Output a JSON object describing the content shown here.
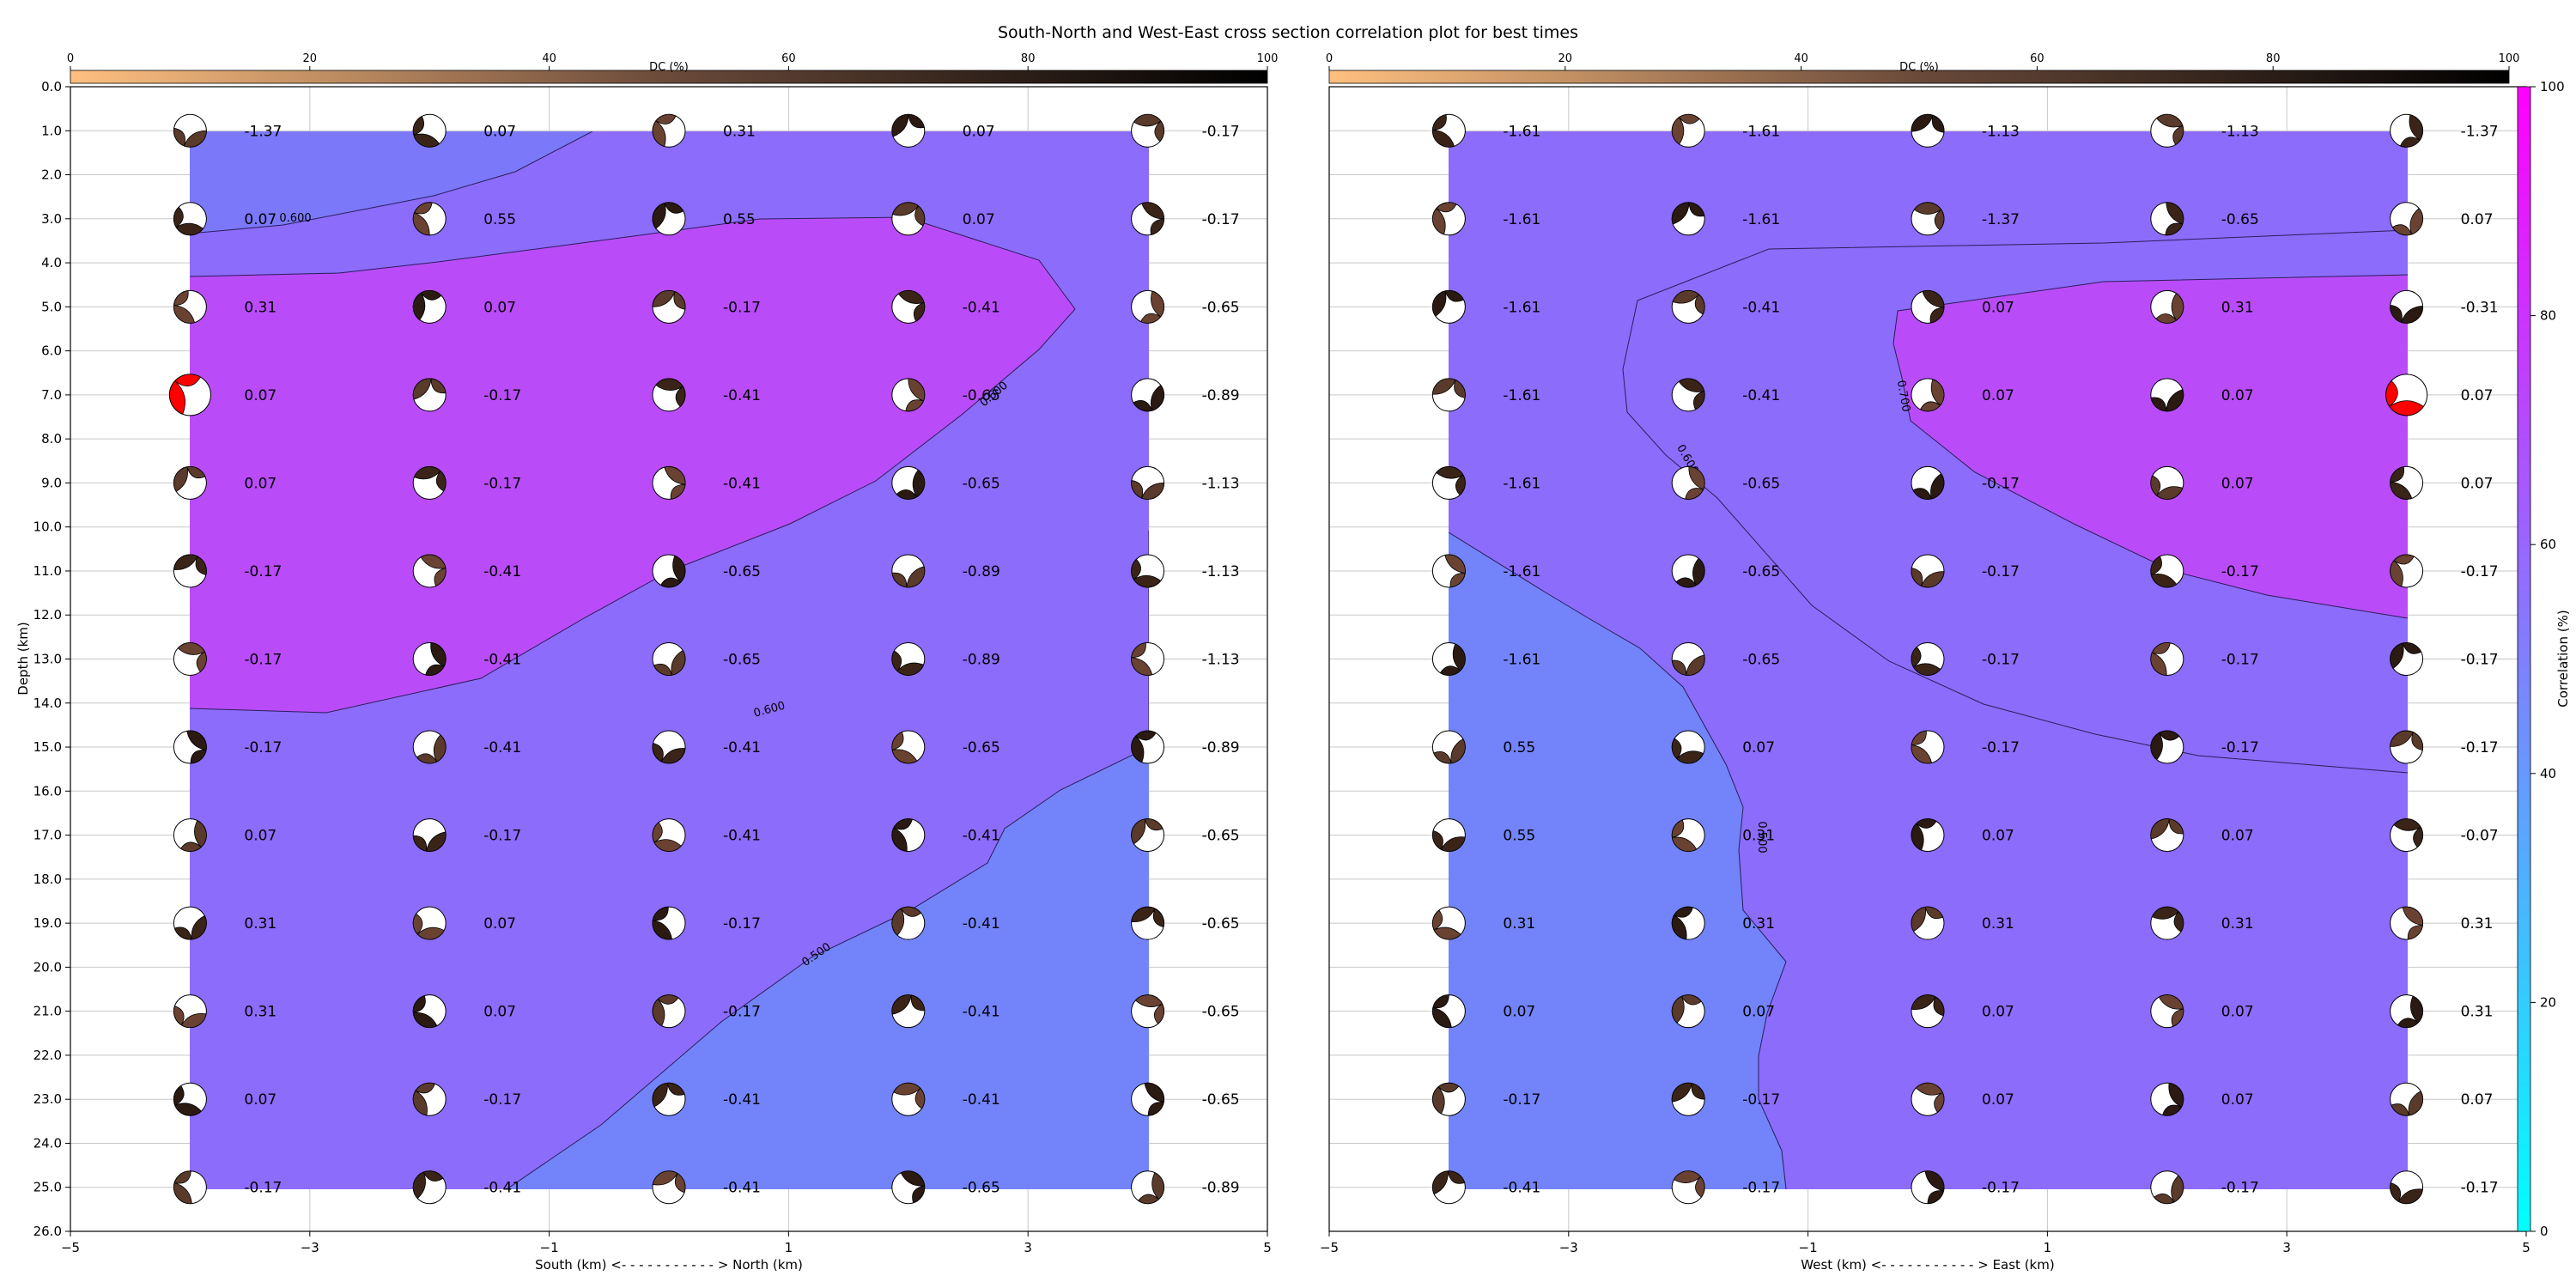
{
  "title": "South-North and West-East cross section correlation plot for best times",
  "dc_label": "DC (%)",
  "dc_ticks": [
    "0",
    "20",
    "40",
    "60",
    "80",
    "100"
  ],
  "colorbar": {
    "label": "Correlation (%)",
    "ticks": [
      "0",
      "20",
      "40",
      "60",
      "80",
      "100"
    ]
  },
  "colors": {
    "dc_start": "#ffc080",
    "dc_mid": "#6a4a3a",
    "dc_end": "#000000",
    "corr_low": "#00ffff",
    "corr_high": "#ff00ff",
    "best": "#ff0000"
  },
  "ylabel": "Depth (km)",
  "depth_ticks": [
    "0.0",
    "1.0",
    "2.0",
    "3.0",
    "4.0",
    "5.0",
    "6.0",
    "7.0",
    "8.0",
    "9.0",
    "10.0",
    "11.0",
    "12.0",
    "13.0",
    "14.0",
    "15.0",
    "16.0",
    "17.0",
    "18.0",
    "19.0",
    "20.0",
    "21.0",
    "22.0",
    "23.0",
    "24.0",
    "25.0",
    "26.0"
  ],
  "chart_data": [
    {
      "type": "heatmap",
      "xlabel": "South (km) <- - - - - - - - - - - > North (km)",
      "ylabel": "Depth (km)",
      "xlim": [
        -5,
        5
      ],
      "ylim": [
        26,
        0
      ],
      "x_ticks": [
        "−5",
        "−3",
        "−1",
        "1",
        "3",
        "5"
      ],
      "x": [
        -4,
        -2,
        0,
        2,
        4
      ],
      "depths": [
        1,
        3,
        5,
        7,
        9,
        11,
        13,
        15,
        17,
        19,
        21,
        23,
        25
      ],
      "contour_labels": [
        "0.600",
        "0.600",
        "0.600",
        "0.500"
      ],
      "best": {
        "x": -4,
        "depth": 7
      },
      "values": [
        [
          "-1.37",
          "0.07",
          "0.31",
          "0.07",
          "-0.17"
        ],
        [
          "0.07",
          "0.55",
          "0.55",
          "0.07",
          "-0.17"
        ],
        [
          "0.31",
          "0.07",
          "-0.17",
          "-0.41",
          "-0.65"
        ],
        [
          "0.07",
          "-0.17",
          "-0.41",
          "-0.65",
          "-0.89"
        ],
        [
          "0.07",
          "-0.17",
          "-0.41",
          "-0.65",
          "-1.13"
        ],
        [
          "-0.17",
          "-0.41",
          "-0.65",
          "-0.89",
          "-1.13"
        ],
        [
          "-0.17",
          "-0.41",
          "-0.65",
          "-0.89",
          "-1.13"
        ],
        [
          "-0.17",
          "-0.41",
          "-0.41",
          "-0.65",
          "-0.89"
        ],
        [
          "0.07",
          "-0.17",
          "-0.41",
          "-0.41",
          "-0.65"
        ],
        [
          "0.31",
          "0.07",
          "-0.17",
          "-0.41",
          "-0.65"
        ],
        [
          "0.31",
          "0.07",
          "-0.17",
          "-0.41",
          "-0.65"
        ],
        [
          "0.07",
          "-0.17",
          "-0.41",
          "-0.41",
          "-0.65"
        ],
        [
          "-0.17",
          "-0.41",
          "-0.41",
          "-0.65",
          "-0.89"
        ]
      ]
    },
    {
      "type": "heatmap",
      "xlabel": "West (km) <- - - - - - - - - - - > East (km)",
      "ylabel": "Depth (km)",
      "xlim": [
        -5,
        5
      ],
      "ylim": [
        26,
        0
      ],
      "x_ticks": [
        "−5",
        "−3",
        "−1",
        "1",
        "3",
        "5"
      ],
      "x": [
        -4,
        -2,
        0,
        2,
        4
      ],
      "depths": [
        1,
        3,
        5,
        7,
        9,
        11,
        13,
        15,
        17,
        19,
        21,
        23,
        25
      ],
      "contour_labels": [
        "0.700",
        "0.600",
        "0.500"
      ],
      "best": {
        "x": 4,
        "depth": 7
      },
      "values": [
        [
          "-1.61",
          "-1.61",
          "-1.13",
          "-1.13",
          "-1.37"
        ],
        [
          "-1.61",
          "-1.61",
          "-1.37",
          "-0.65",
          "0.07"
        ],
        [
          "-1.61",
          "-0.41",
          "0.07",
          "0.31",
          "-0.31"
        ],
        [
          "-1.61",
          "-0.41",
          "0.07",
          "0.07",
          "0.07"
        ],
        [
          "-1.61",
          "-0.65",
          "-0.17",
          "0.07",
          "0.07"
        ],
        [
          "-1.61",
          "-0.65",
          "-0.17",
          "-0.17",
          "-0.17"
        ],
        [
          "-1.61",
          "-0.65",
          "-0.17",
          "-0.17",
          "-0.17"
        ],
        [
          "0.55",
          "0.07",
          "-0.17",
          "-0.17",
          "-0.17"
        ],
        [
          "0.55",
          "0.31",
          "0.07",
          "0.07",
          "-0.07"
        ],
        [
          "0.31",
          "0.31",
          "0.31",
          "0.31",
          "0.31"
        ],
        [
          "0.07",
          "0.07",
          "0.07",
          "0.07",
          "0.31"
        ],
        [
          "-0.17",
          "-0.17",
          "0.07",
          "0.07",
          "0.07"
        ],
        [
          "-0.41",
          "-0.17",
          "-0.17",
          "-0.17",
          "-0.17"
        ]
      ]
    }
  ]
}
